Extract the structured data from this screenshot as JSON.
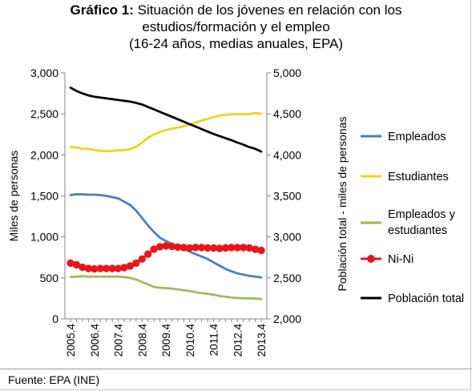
{
  "title": {
    "bold": "Gráfico 1:",
    "line1": "Situación de los jóvenes en relación con los",
    "line2": "estudios/formación y el empleo",
    "line3": "(16-24 años, medias anuales, EPA)"
  },
  "footer": {
    "source": "Fuente:  EPA (INE)"
  },
  "chart_data": {
    "type": "line",
    "ylabel": "Miles de personas",
    "y2label": "Población total - miles de personas",
    "ylim": [
      0,
      3000
    ],
    "y2lim": [
      2000,
      5000
    ],
    "ytick_labels": [
      "0",
      "500",
      "1,000",
      "1,500",
      "2,000",
      "2,500",
      "3,000"
    ],
    "ytick_values": [
      0,
      500,
      1000,
      1500,
      2000,
      2500,
      3000
    ],
    "y2tick_labels": [
      "2,000",
      "2,500",
      "3,000",
      "3,500",
      "4,000",
      "4,500",
      "5,000"
    ],
    "y2tick_values": [
      2000,
      2500,
      3000,
      3500,
      4000,
      4500,
      5000
    ],
    "grid": false,
    "legend_position": "right",
    "x": [
      "2005.4",
      "2006.1",
      "2006.2",
      "2006.3",
      "2006.4",
      "2007.1",
      "2007.2",
      "2007.3",
      "2007.4",
      "2008.1",
      "2008.2",
      "2008.3",
      "2008.4",
      "2009.1",
      "2009.2",
      "2009.3",
      "2009.4",
      "2010.1",
      "2010.2",
      "2010.3",
      "2010.4",
      "2011.1",
      "2011.2",
      "2011.3",
      "2011.4",
      "2012.1",
      "2012.2",
      "2012.3",
      "2012.4",
      "2013.1",
      "2013.2",
      "2013.3",
      "2013.4"
    ],
    "xtick_labels": [
      "2005.4",
      "2006.4",
      "2007.4",
      "2008.4",
      "2009.4",
      "2010.4",
      "2011.4",
      "2012.4",
      "2013.4"
    ],
    "series": [
      {
        "name": "Empleados",
        "color": "#4a7ebb",
        "marker": "none",
        "axis": "left",
        "values": [
          1510,
          1520,
          1520,
          1515,
          1515,
          1510,
          1500,
          1485,
          1470,
          1430,
          1390,
          1320,
          1230,
          1140,
          1060,
          990,
          950,
          915,
          880,
          850,
          820,
          790,
          760,
          730,
          690,
          650,
          610,
          580,
          555,
          540,
          525,
          515,
          505
        ]
      },
      {
        "name": "Estudiantes",
        "color": "#f2d21b",
        "marker": "none",
        "axis": "left",
        "values": [
          2100,
          2090,
          2075,
          2075,
          2060,
          2050,
          2045,
          2050,
          2055,
          2060,
          2070,
          2100,
          2150,
          2210,
          2250,
          2280,
          2300,
          2320,
          2335,
          2350,
          2370,
          2395,
          2420,
          2440,
          2460,
          2480,
          2490,
          2495,
          2500,
          2495,
          2500,
          2510,
          2505
        ]
      },
      {
        "name": "Empleados y estudiantes",
        "color": "#9bbb59",
        "marker": "none",
        "axis": "left",
        "values": [
          510,
          515,
          520,
          515,
          515,
          515,
          515,
          515,
          515,
          510,
          500,
          480,
          450,
          420,
          390,
          380,
          375,
          370,
          360,
          350,
          340,
          325,
          315,
          305,
          295,
          280,
          270,
          260,
          255,
          250,
          250,
          248,
          240
        ]
      },
      {
        "name": "Ni-Ni",
        "color": "#e8161b",
        "marker": "circle",
        "axis": "left",
        "values": [
          680,
          660,
          630,
          615,
          610,
          615,
          615,
          615,
          615,
          625,
          645,
          680,
          730,
          790,
          850,
          880,
          890,
          885,
          875,
          870,
          865,
          870,
          870,
          865,
          865,
          860,
          865,
          870,
          870,
          870,
          865,
          850,
          835
        ]
      },
      {
        "name": "Población total",
        "color": "#000000",
        "marker": "none",
        "axis": "right",
        "values": [
          4820,
          4780,
          4750,
          4725,
          4710,
          4700,
          4690,
          4680,
          4670,
          4660,
          4650,
          4635,
          4615,
          4585,
          4555,
          4525,
          4495,
          4465,
          4435,
          4405,
          4375,
          4345,
          4315,
          4285,
          4255,
          4230,
          4205,
          4180,
          4150,
          4125,
          4095,
          4075,
          4040
        ]
      }
    ]
  }
}
